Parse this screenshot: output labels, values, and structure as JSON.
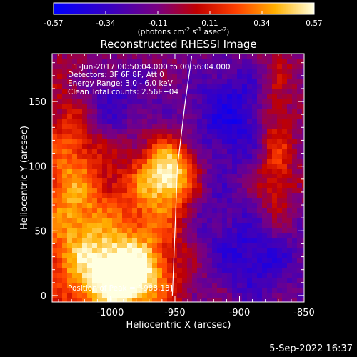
{
  "colorbar": {
    "tick_labels": [
      "-0.57",
      "-0.34",
      "-0.11",
      "0.11",
      "0.34",
      "0.57"
    ],
    "range": [
      -0.57,
      0.57
    ],
    "units_prefix": "(photons cm",
    "units_exp1": "-2",
    "units_mid": " s",
    "units_exp2": "-1",
    "units_mid2": " asec",
    "units_exp3": "-2",
    "units_suffix": ")"
  },
  "chart_data": {
    "type": "heatmap",
    "title": "Reconstructed RHESSI Image",
    "xlabel": "Heliocentric X (arcsec)",
    "ylabel": "Heliocentric Y (arcsec)",
    "xlim": [
      -1045,
      -850
    ],
    "ylim": [
      -5,
      187
    ],
    "xticks": [
      -1000,
      -950,
      -900,
      -850
    ],
    "xtick_labels": [
      "-1000",
      "-950",
      "-900",
      "-850"
    ],
    "yticks": [
      0,
      50,
      100,
      150
    ],
    "ytick_labels": [
      "0",
      "50",
      "100",
      "150"
    ],
    "peaks": [
      {
        "x": -955,
        "y": 95,
        "value": 0.55
      },
      {
        "x": -988,
        "y": 13,
        "value": 0.57
      },
      {
        "x": -1030,
        "y": 100,
        "value": 0.3
      },
      {
        "x": -872,
        "y": 110,
        "value": 0.25
      }
    ],
    "limb_curve": [
      [
        -937,
        185
      ],
      [
        -942,
        150
      ],
      [
        -948,
        100
      ],
      [
        -950,
        50
      ],
      [
        -952,
        0
      ]
    ],
    "annotations": {
      "time": "1-Jun-2017 00:50:04.000 to 00:56:04.000",
      "detectors": "Detectors: 3F 6F 8F, Att 0",
      "energy": "Energy Range: 3.0 - 6.0 keV",
      "clean": "Clean     Total counts: 2.56E+04",
      "peak": "Position of Peak = [-988,13]"
    }
  },
  "footer": {
    "date": "5-Sep-2022 16:37"
  }
}
